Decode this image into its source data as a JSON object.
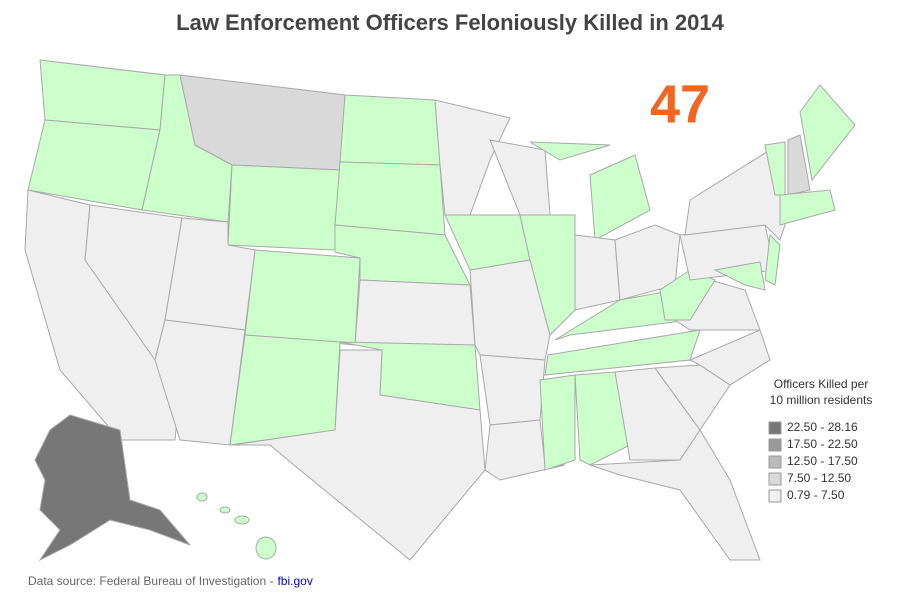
{
  "title": "Law Enforcement Officers Feloniously Killed in 2014",
  "total": 47,
  "legend": {
    "title": [
      "Officers Killed per",
      "10 million residents"
    ],
    "items": [
      {
        "label": "22.50 - 28.16",
        "color": "#777777"
      },
      {
        "label": "17.50 - 22.50",
        "color": "#999999"
      },
      {
        "label": "12.50 - 17.50",
        "color": "#bbbbbb"
      },
      {
        "label": "7.50 - 12.50",
        "color": "#d9d9d9"
      },
      {
        "label": "0.79 - 7.50",
        "color": "#efefef"
      }
    ]
  },
  "source": {
    "text": "Data source: Federal Bureau of Investigation -",
    "link": "fbi.gov"
  }
}
